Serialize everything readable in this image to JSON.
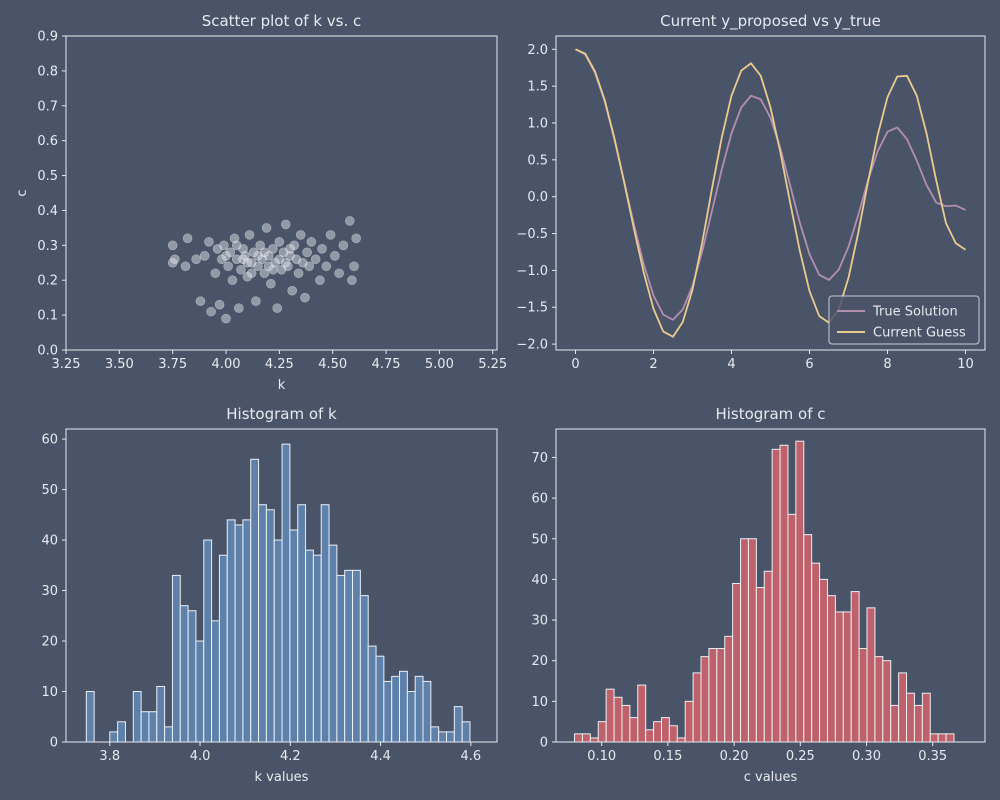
{
  "theme": {
    "background": "#4a5468",
    "axis_color": "#e6e9ef",
    "text_color": "#e6e9ef",
    "scatter_color": "#e9ecf1",
    "true_solution_color": "#b48ead",
    "current_guess_color": "#ebcb8b",
    "hist_k_color": "#5e81ac",
    "hist_c_color": "#bf616a",
    "bar_edge_color": "#eceff4"
  },
  "chart_data": [
    {
      "type": "scatter",
      "title": "Scatter plot of k vs. c",
      "xlabel": "k",
      "ylabel": "c",
      "xlim": [
        3.25,
        5.27
      ],
      "ylim": [
        0.0,
        0.9
      ],
      "xticks": [
        3.25,
        3.5,
        3.75,
        4.0,
        4.25,
        4.5,
        4.75,
        5.0,
        5.25
      ],
      "xtick_labels": [
        "3.25",
        "3.50",
        "3.75",
        "4.00",
        "4.25",
        "4.50",
        "4.75",
        "5.00",
        "5.25"
      ],
      "yticks": [
        0.0,
        0.1,
        0.2,
        0.3,
        0.4,
        0.5,
        0.6,
        0.7,
        0.8,
        0.9
      ],
      "ytick_labels": [
        "0.0",
        "0.1",
        "0.2",
        "0.3",
        "0.4",
        "0.5",
        "0.6",
        "0.7",
        "0.8",
        "0.9"
      ],
      "points": [
        [
          3.75,
          0.25
        ],
        [
          3.75,
          0.3
        ],
        [
          3.76,
          0.26
        ],
        [
          3.81,
          0.24
        ],
        [
          3.82,
          0.32
        ],
        [
          3.86,
          0.26
        ],
        [
          3.88,
          0.14
        ],
        [
          3.9,
          0.27
        ],
        [
          3.92,
          0.31
        ],
        [
          3.93,
          0.11
        ],
        [
          3.95,
          0.22
        ],
        [
          3.96,
          0.29
        ],
        [
          3.97,
          0.13
        ],
        [
          3.98,
          0.26
        ],
        [
          3.99,
          0.3
        ],
        [
          4.0,
          0.09
        ],
        [
          4.01,
          0.24
        ],
        [
          4.02,
          0.28
        ],
        [
          4.03,
          0.2
        ],
        [
          4.04,
          0.32
        ],
        [
          4.05,
          0.26
        ],
        [
          4.06,
          0.12
        ],
        [
          4.07,
          0.23
        ],
        [
          4.08,
          0.29
        ],
        [
          4.09,
          0.27
        ],
        [
          4.1,
          0.21
        ],
        [
          4.11,
          0.33
        ],
        [
          4.12,
          0.25
        ],
        [
          4.13,
          0.28
        ],
        [
          4.14,
          0.14
        ],
        [
          4.15,
          0.24
        ],
        [
          4.16,
          0.3
        ],
        [
          4.17,
          0.26
        ],
        [
          4.18,
          0.22
        ],
        [
          4.19,
          0.35
        ],
        [
          4.2,
          0.27
        ],
        [
          4.21,
          0.19
        ],
        [
          4.22,
          0.29
        ],
        [
          4.23,
          0.25
        ],
        [
          4.24,
          0.12
        ],
        [
          4.25,
          0.31
        ],
        [
          4.26,
          0.23
        ],
        [
          4.27,
          0.28
        ],
        [
          4.28,
          0.36
        ],
        [
          4.29,
          0.24
        ],
        [
          4.3,
          0.27
        ],
        [
          4.31,
          0.17
        ],
        [
          4.32,
          0.3
        ],
        [
          4.33,
          0.26
        ],
        [
          4.34,
          0.22
        ],
        [
          4.35,
          0.33
        ],
        [
          4.36,
          0.25
        ],
        [
          4.37,
          0.15
        ],
        [
          4.38,
          0.28
        ],
        [
          4.39,
          0.24
        ],
        [
          4.4,
          0.31
        ],
        [
          4.42,
          0.26
        ],
        [
          4.44,
          0.2
        ],
        [
          4.45,
          0.29
        ],
        [
          4.47,
          0.24
        ],
        [
          4.49,
          0.33
        ],
        [
          4.51,
          0.27
        ],
        [
          4.53,
          0.22
        ],
        [
          4.55,
          0.3
        ],
        [
          4.58,
          0.37
        ],
        [
          4.59,
          0.2
        ],
        [
          4.6,
          0.24
        ],
        [
          4.61,
          0.32
        ],
        [
          4.05,
          0.3
        ],
        [
          4.1,
          0.25
        ],
        [
          4.15,
          0.27
        ],
        [
          4.2,
          0.24
        ],
        [
          4.25,
          0.26
        ],
        [
          4.3,
          0.29
        ],
        [
          4.12,
          0.22
        ],
        [
          4.08,
          0.26
        ],
        [
          4.18,
          0.28
        ],
        [
          4.22,
          0.23
        ],
        [
          4.28,
          0.25
        ],
        [
          4.0,
          0.27
        ]
      ]
    },
    {
      "type": "line",
      "title": "Current y_proposed vs y_true",
      "xlabel": "",
      "ylabel": "",
      "xlim": [
        -0.5,
        10.5
      ],
      "ylim": [
        -2.08,
        2.18
      ],
      "xticks": [
        0,
        2,
        4,
        6,
        8,
        10
      ],
      "xtick_labels": [
        "0",
        "2",
        "4",
        "6",
        "8",
        "10"
      ],
      "yticks": [
        -2.0,
        -1.5,
        -1.0,
        -0.5,
        0.0,
        0.5,
        1.0,
        1.5,
        2.0
      ],
      "ytick_labels": [
        "−2.0",
        "−1.5",
        "−1.0",
        "−0.5",
        "0.0",
        "0.5",
        "1.0",
        "1.5",
        "2.0"
      ],
      "legend_position": "bottom-right",
      "series": [
        {
          "name": "True Solution",
          "x": [
            0,
            0.25,
            0.5,
            0.75,
            1,
            1.25,
            1.5,
            1.75,
            2,
            2.25,
            2.5,
            2.75,
            3,
            3.25,
            3.5,
            3.75,
            4,
            4.25,
            4.5,
            4.75,
            5,
            5.25,
            5.5,
            5.75,
            6,
            6.25,
            6.5,
            6.75,
            7,
            7.25,
            7.5,
            7.75,
            8,
            8.25,
            8.5,
            8.75,
            9,
            9.25,
            9.5,
            9.75,
            10
          ],
          "y": [
            2.0,
            1.93,
            1.68,
            1.29,
            0.77,
            0.2,
            -0.38,
            -0.92,
            -1.34,
            -1.6,
            -1.67,
            -1.53,
            -1.21,
            -0.74,
            -0.19,
            0.37,
            0.86,
            1.21,
            1.37,
            1.32,
            1.07,
            0.66,
            0.16,
            -0.35,
            -0.78,
            -1.06,
            -1.13,
            -0.99,
            -0.68,
            -0.25,
            0.22,
            0.62,
            0.88,
            0.94,
            0.78,
            0.49,
            0.16,
            -0.08,
            -0.13,
            -0.12,
            -0.18
          ]
        },
        {
          "name": "Current Guess",
          "x": [
            0,
            0.25,
            0.5,
            0.75,
            1,
            1.25,
            1.5,
            1.75,
            2,
            2.25,
            2.5,
            2.75,
            3,
            3.25,
            3.5,
            3.75,
            4,
            4.25,
            4.5,
            4.75,
            5,
            5.25,
            5.5,
            5.75,
            6,
            6.25,
            6.5,
            6.75,
            7,
            7.25,
            7.5,
            7.75,
            8,
            8.25,
            8.5,
            8.75,
            9,
            9.25,
            9.5,
            9.75,
            10
          ],
          "y": [
            2.0,
            1.94,
            1.7,
            1.31,
            0.79,
            0.19,
            -0.44,
            -1.03,
            -1.52,
            -1.83,
            -1.9,
            -1.7,
            -1.26,
            -0.62,
            0.11,
            0.8,
            1.37,
            1.71,
            1.81,
            1.64,
            1.21,
            0.61,
            -0.07,
            -0.73,
            -1.28,
            -1.62,
            -1.71,
            -1.53,
            -1.1,
            -0.49,
            0.2,
            0.84,
            1.35,
            1.63,
            1.64,
            1.37,
            0.86,
            0.22,
            -0.36,
            -0.63,
            -0.72
          ]
        }
      ]
    },
    {
      "type": "bar",
      "title": "Histogram of k",
      "xlabel": "k values",
      "ylabel": "",
      "xlim": [
        3.703,
        4.658
      ],
      "ylim": [
        0,
        62
      ],
      "xticks": [
        3.8,
        4.0,
        4.2,
        4.4,
        4.6
      ],
      "xtick_labels": [
        "3.8",
        "4.0",
        "4.2",
        "4.4",
        "4.6"
      ],
      "yticks": [
        0,
        10,
        20,
        30,
        40,
        50,
        60
      ],
      "ytick_labels": [
        "0",
        "10",
        "20",
        "30",
        "40",
        "50",
        "60"
      ],
      "bin_start": 3.748,
      "bin_width": 0.01735,
      "values": [
        10,
        0,
        0,
        2,
        4,
        0,
        10,
        6,
        6,
        11,
        3,
        33,
        27,
        26,
        20,
        40,
        24,
        37,
        44,
        43,
        44,
        56,
        47,
        46,
        40,
        59,
        42,
        47,
        38,
        37,
        47,
        39,
        33,
        34,
        34,
        29,
        19,
        17,
        12,
        13,
        14,
        10,
        13,
        12,
        3,
        2,
        2,
        7,
        4
      ]
    },
    {
      "type": "bar",
      "title": "Histogram of c",
      "xlabel": "c values",
      "ylabel": "",
      "xlim": [
        0.0655,
        0.3895
      ],
      "ylim": [
        0,
        77
      ],
      "xticks": [
        0.1,
        0.15,
        0.2,
        0.25,
        0.3,
        0.35
      ],
      "xtick_labels": [
        "0.10",
        "0.15",
        "0.20",
        "0.25",
        "0.30",
        "0.35"
      ],
      "yticks": [
        0,
        10,
        20,
        30,
        40,
        50,
        60,
        70
      ],
      "ytick_labels": [
        "0",
        "10",
        "20",
        "30",
        "40",
        "50",
        "60",
        "70"
      ],
      "bin_start": 0.0795,
      "bin_width": 0.00597,
      "values": [
        2,
        2,
        1,
        5,
        13,
        11,
        9,
        6,
        14,
        3,
        5,
        6,
        4,
        1,
        10,
        17,
        21,
        23,
        23,
        26,
        39,
        50,
        50,
        38,
        42,
        72,
        73,
        56,
        74,
        51,
        44,
        40,
        36,
        32,
        32,
        37,
        23,
        33,
        21,
        20,
        9,
        17,
        12,
        9,
        12,
        2,
        2,
        2
      ]
    }
  ]
}
